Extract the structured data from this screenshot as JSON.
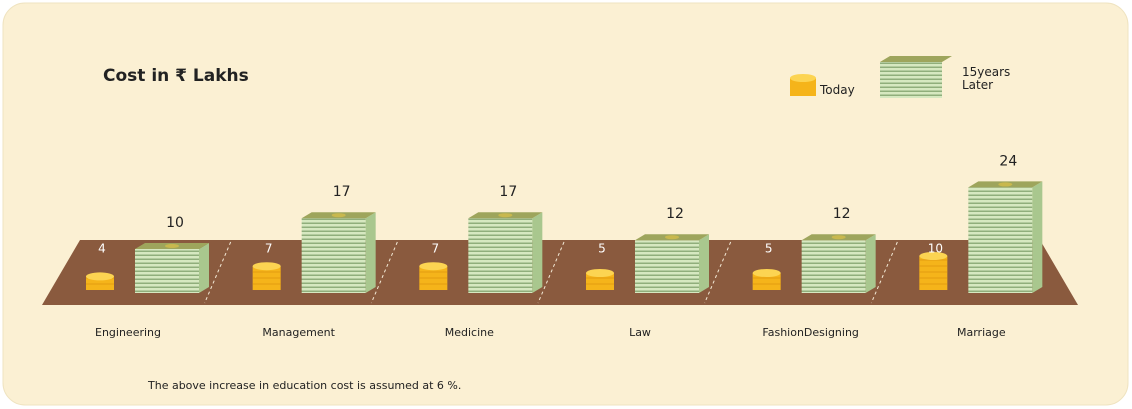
{
  "chart_data": {
    "type": "pictogram",
    "title": "Cost in ₹ Lakhs",
    "categories": [
      "Engineering",
      "Management",
      "Medicine",
      "Law",
      "FashionDesigning",
      "Marriage"
    ],
    "series": [
      {
        "name": "Today",
        "color": "#f5b41a",
        "values": [
          4,
          7,
          7,
          5,
          5,
          10
        ]
      },
      {
        "name": "15years Later",
        "color": "#cfe2b6",
        "values": [
          10,
          17,
          17,
          12,
          12,
          24
        ]
      }
    ],
    "note": "The above increase in education cost is assumed at 6 %."
  }
}
